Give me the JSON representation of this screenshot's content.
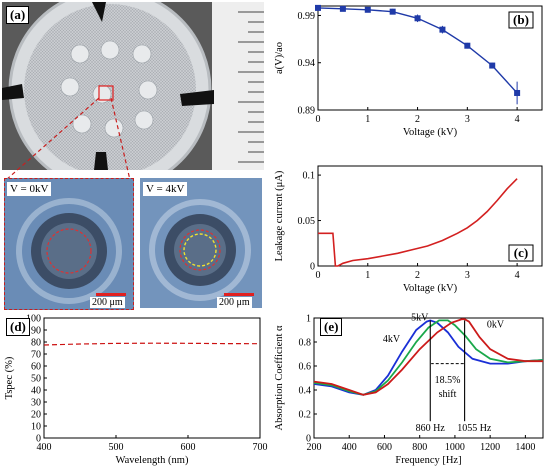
{
  "panels": {
    "a": {
      "label": "(a)",
      "left_label": "V = 0kV",
      "right_label": "V = 4kV",
      "left_scale": "200 μm",
      "right_scale": "200 μm"
    },
    "d_label": "(d)",
    "e_label": "(e)"
  },
  "chart_data": [
    {
      "id": "b",
      "label": "(b)",
      "type": "line",
      "xlabel": "Voltage (kV)",
      "ylabel": "a(V)/ao",
      "xlim": [
        0,
        4.5
      ],
      "ylim": [
        0.89,
        1.0
      ],
      "xticks": [
        "0",
        "1",
        "2",
        "3",
        "4"
      ],
      "yticks": [
        "0.89",
        "0.94",
        "0.99"
      ],
      "series": [
        {
          "color": "#1f3aa8",
          "x": [
            0,
            0.5,
            1,
            1.5,
            2,
            2.5,
            3,
            3.5,
            4
          ],
          "y": [
            0.998,
            0.997,
            0.996,
            0.994,
            0.987,
            0.975,
            0.958,
            0.937,
            0.908
          ],
          "err": [
            0.001,
            0.001,
            0.002,
            0.003,
            0.004,
            0.004,
            0.003,
            0.003,
            0.012
          ]
        }
      ]
    },
    {
      "id": "c",
      "label": "(c)",
      "type": "line",
      "xlabel": "Voltage (kV)",
      "ylabel": "Leakage current (μA)",
      "xlim": [
        0,
        4.5
      ],
      "ylim": [
        0,
        0.11
      ],
      "xticks": [
        "0",
        "1",
        "2",
        "3",
        "4"
      ],
      "yticks": [
        "0",
        "0.05",
        "0.1"
      ],
      "series": [
        {
          "color": "#d32020",
          "x": [
            0,
            0.3,
            0.35,
            0.4,
            0.5,
            0.7,
            1.0,
            1.3,
            1.6,
            1.9,
            2.2,
            2.5,
            2.8,
            3.0,
            3.2,
            3.4,
            3.6,
            3.8,
            4.0
          ],
          "y": [
            0.036,
            0.036,
            0.0,
            0.0,
            0.003,
            0.006,
            0.008,
            0.011,
            0.014,
            0.018,
            0.022,
            0.028,
            0.036,
            0.042,
            0.05,
            0.06,
            0.072,
            0.085,
            0.096
          ]
        }
      ]
    },
    {
      "id": "d",
      "type": "line",
      "xlabel": "Wavelength (nm)",
      "ylabel": "Tspec (%)",
      "xlim": [
        400,
        700
      ],
      "ylim": [
        0,
        100
      ],
      "xticks": [
        "400",
        "500",
        "600",
        "700"
      ],
      "yticks": [
        "0",
        "10",
        "20",
        "30",
        "40",
        "50",
        "60",
        "70",
        "80",
        "90",
        "100"
      ],
      "series": [
        {
          "color": "#cc1111",
          "x": [
            400,
            450,
            500,
            550,
            600,
            650,
            700
          ],
          "y": [
            77.5,
            78.3,
            78.8,
            79.0,
            78.9,
            78.7,
            78.6
          ]
        }
      ]
    },
    {
      "id": "e",
      "type": "line",
      "xlabel": "Frequency [Hz]",
      "ylabel": "Absorption Coefficient α",
      "xlim": [
        200,
        1500
      ],
      "ylim": [
        0,
        1
      ],
      "xticks": [
        "200",
        "400",
        "600",
        "800",
        "1000",
        "1200",
        "1400"
      ],
      "yticks": [
        "0",
        "0.2",
        "0.4",
        "0.6",
        "0.8",
        "1"
      ],
      "annotations": {
        "label_5kv": "5kV",
        "label_4kv": "4kV",
        "label_0kv": "0kV",
        "shift_pct": "18.5%",
        "shift_word": "shift",
        "f_low": "860 Hz",
        "f_high": "1055 Hz"
      },
      "series": [
        {
          "color": "#1a2fd6",
          "x": [
            200,
            300,
            400,
            480,
            550,
            620,
            700,
            780,
            840,
            860,
            900,
            960,
            1020,
            1100,
            1200,
            1300,
            1400,
            1500
          ],
          "y": [
            0.45,
            0.43,
            0.38,
            0.36,
            0.4,
            0.52,
            0.72,
            0.9,
            0.97,
            0.98,
            0.96,
            0.88,
            0.76,
            0.66,
            0.62,
            0.62,
            0.64,
            0.65
          ]
        },
        {
          "color": "#1aa84a",
          "x": [
            200,
            300,
            400,
            480,
            550,
            620,
            700,
            780,
            850,
            910,
            960,
            1000,
            1060,
            1120,
            1200,
            1300,
            1400,
            1500
          ],
          "y": [
            0.46,
            0.44,
            0.39,
            0.36,
            0.39,
            0.48,
            0.63,
            0.8,
            0.92,
            0.98,
            0.98,
            0.94,
            0.85,
            0.74,
            0.66,
            0.63,
            0.64,
            0.65
          ]
        },
        {
          "color": "#cc1a1a",
          "x": [
            200,
            300,
            400,
            480,
            550,
            620,
            700,
            800,
            900,
            980,
            1040,
            1055,
            1080,
            1140,
            1200,
            1300,
            1400,
            1500
          ],
          "y": [
            0.47,
            0.45,
            0.4,
            0.36,
            0.38,
            0.45,
            0.57,
            0.74,
            0.88,
            0.96,
            0.99,
            0.99,
            0.97,
            0.84,
            0.74,
            0.66,
            0.64,
            0.64
          ]
        }
      ]
    }
  ]
}
